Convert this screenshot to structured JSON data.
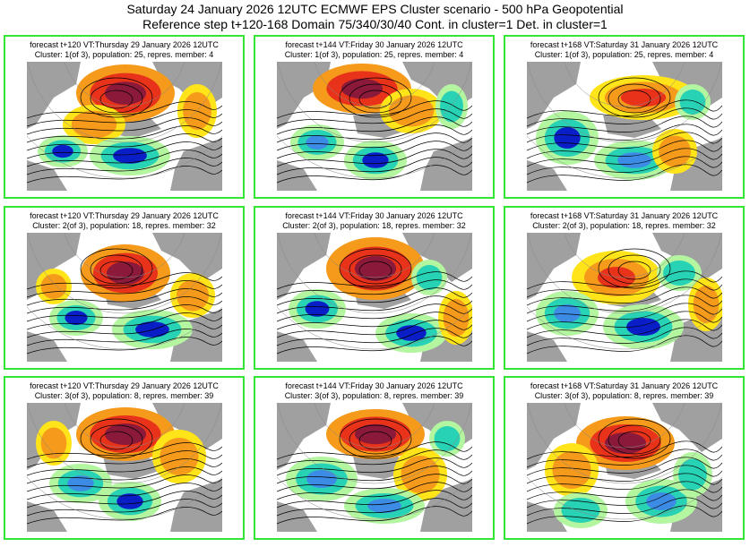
{
  "header": {
    "line1": "Saturday 24 January 2026 12UTC ECMWF EPS Cluster scenario - 500 hPa Geopotential",
    "line2": "Reference step t+120-168 Domain 75/340/30/40 Cont. in cluster=1 Det. in cluster=1"
  },
  "panels": [
    {
      "forecast": "forecast t+120 VT:Thursday 29 January 2026 12UTC",
      "cluster": "Cluster: 1(of 3), population: 25, repres. member: 4"
    },
    {
      "forecast": "forecast t+144 VT:Friday 30 January 2026 12UTC",
      "cluster": "Cluster: 1(of 3), population: 25, repres. member: 4"
    },
    {
      "forecast": "forecast t+168 VT:Saturday 31 January 2026 12UTC",
      "cluster": "Cluster: 1(of 3), population: 25, repres. member: 4"
    },
    {
      "forecast": "forecast t+120 VT:Thursday 29 January 2026 12UTC",
      "cluster": "Cluster: 2(of 3), population: 18, repres. member: 32"
    },
    {
      "forecast": "forecast t+144 VT:Friday 30 January 2026 12UTC",
      "cluster": "Cluster: 2(of 3), population: 18, repres. member: 32"
    },
    {
      "forecast": "forecast t+168 VT:Saturday 31 January 2026 12UTC",
      "cluster": "Cluster: 2(of 3), population: 18, repres. member: 32"
    },
    {
      "forecast": "forecast t+120 VT:Thursday 29 January 2026 12UTC",
      "cluster": "Cluster: 3(of 3), population: 8, repres. member: 39"
    },
    {
      "forecast": "forecast t+144 VT:Friday 30 January 2026 12UTC",
      "cluster": "Cluster: 3(of 3), population: 8, repres. member: 39"
    },
    {
      "forecast": "forecast t+168 VT:Saturday 31 January 2026 12UTC",
      "cluster": "Cluster: 3(of 3), population: 8, repres. member: 39"
    }
  ],
  "colors": {
    "panel_border": "#33e633",
    "land": "#a0a0a0",
    "ocean": "#ffffff",
    "anomaly_strong_pos": "#8b1a3a",
    "anomaly_pos": "#e8331a",
    "anomaly_mid_pos": "#f59a1a",
    "anomaly_weak_pos": "#ffe41a",
    "anomaly_weak_neg": "#b4f5a0",
    "anomaly_neg": "#28d2b4",
    "anomaly_mid_neg": "#3c8ce6",
    "anomaly_strong_neg": "#0a1ec8"
  }
}
